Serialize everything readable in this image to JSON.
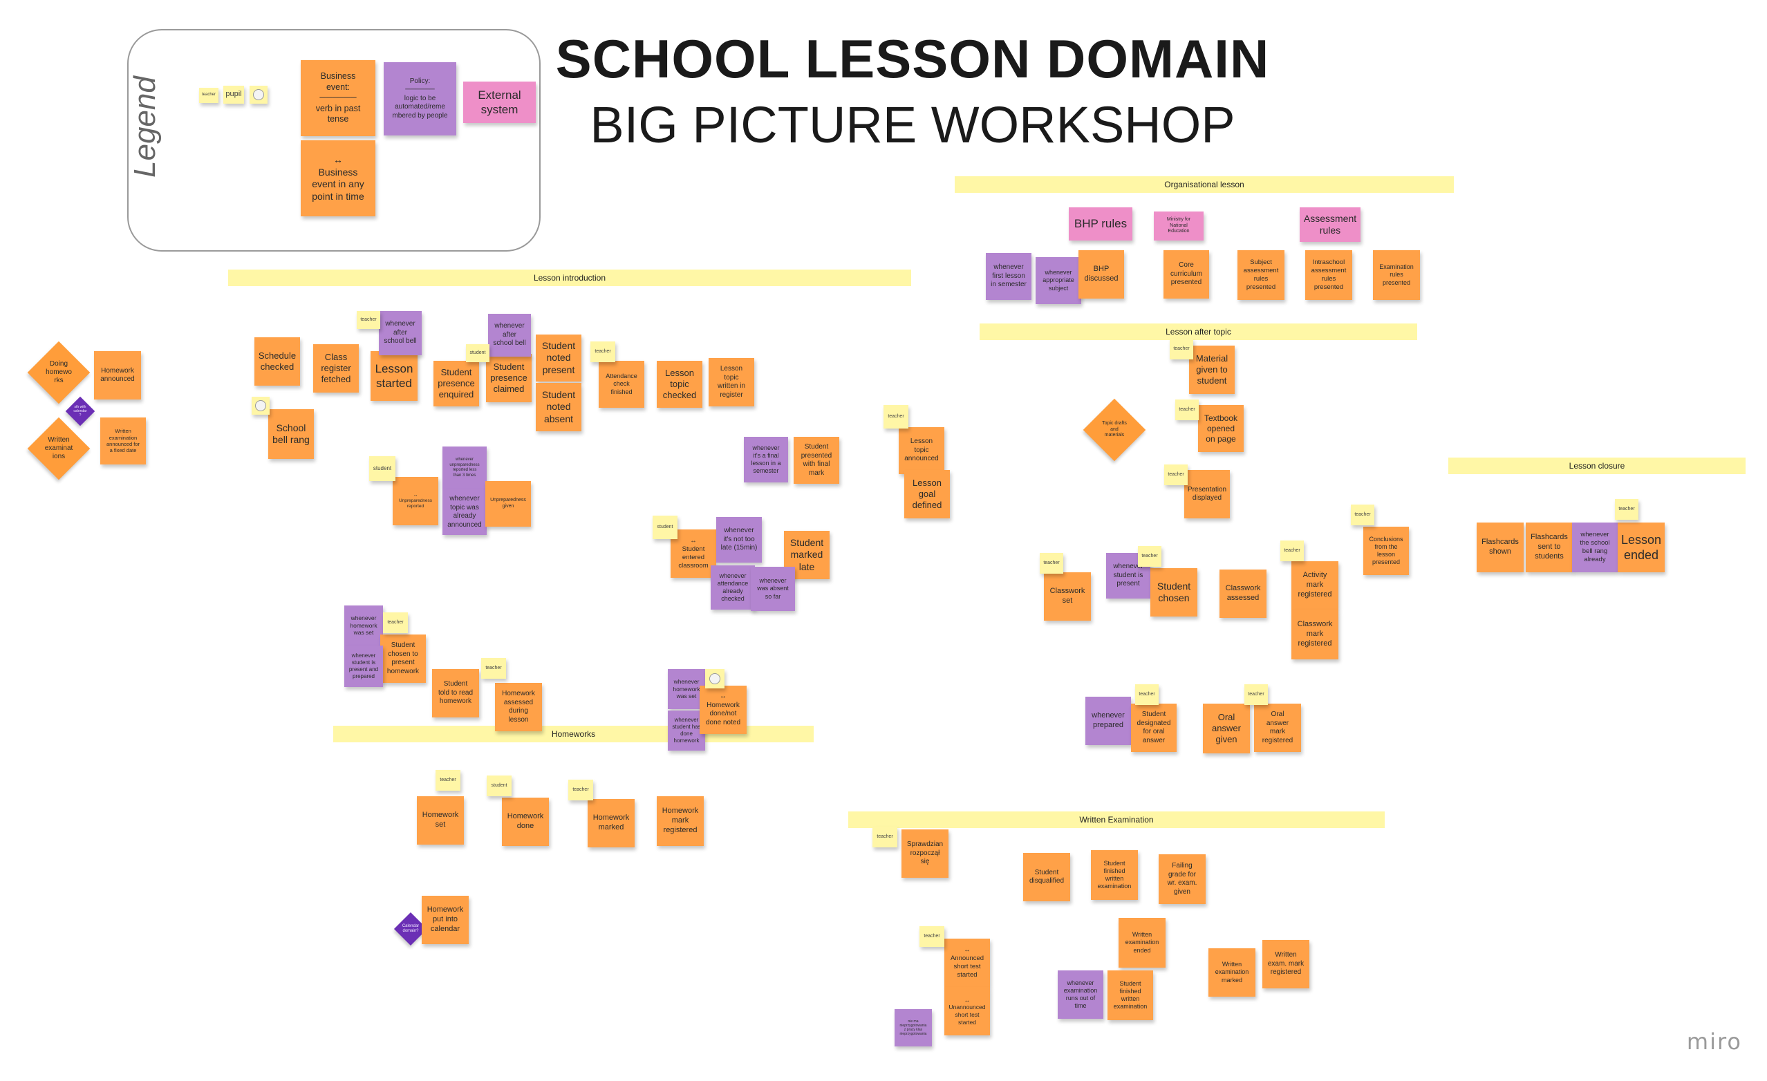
{
  "title": "SCHOOL LESSON DOMAIN",
  "subtitle": "BIG PICTURE WORKSHOP",
  "legend_label": "Legend",
  "brand": "miro",
  "colors": {
    "event": "#ffa148",
    "policy": "#b385d0",
    "external_system": "#ee8fc8",
    "actor": "#fff6a6",
    "banner": "#fff7a6",
    "calendar_diamond": "#6b2fb5"
  },
  "banners": [
    "Organisational lesson",
    "Lesson introduction",
    "Lesson after topic",
    "Lesson closure",
    "Homeworks",
    "Written Examination"
  ],
  "legend": {
    "actors": [
      "teacher",
      "pupil"
    ],
    "event": "Business\nevent:\n──────\nverb in past\ntense",
    "policy": "Policy:\n──────\nlogic to be\nautomated/reme\nmbered by people",
    "external": "External\nsystem",
    "event_any_time": "↔\nBusiness\nevent in any\npoint in time"
  },
  "diamonds": [
    "Doing\nhomewo\nrks",
    "Written\nexaminat\nions",
    "sth with\ncalendar\n?",
    "Topic drafts\nand\nmaterials",
    "Calendar\ndomain?"
  ],
  "notes": [
    "Homework\nannounced",
    "Written\nexamination\nannounced for\na fixed date",
    "Schedule\nchecked",
    "Class\nregister\nfetched",
    "Lesson\nstarted",
    "Student\npresence\nenquired",
    "Student\npresence\nclaimed",
    "Student\nnoted\npresent",
    "Student\nnoted\nabsent",
    "Attendance\ncheck\nfinished",
    "Lesson\ntopic\nchecked",
    "Lesson\ntopic\nwritten in\nregister",
    "School\nbell rang",
    "whenever\nafter\nschool bell",
    "whenever\nafter\nschool bell",
    "whenever\nunpreparedness\nreported less\nthan 3 times",
    "↔\nUnpreparedness\nreported",
    "whenever\ntopic was\nalready\nannounced",
    "Unpreparedness\ngiven",
    "whenever\nit's a final\nlesson in a\nsemester",
    "Student\npresented\nwith final\nmark",
    "Lesson\ntopic\nannounced",
    "Lesson\ngoal\ndefined",
    "↔\nStudent\nentered\nclassroom",
    "whenever\nit's not too\nlate (15min)",
    "Student\nmarked\nlate",
    "whenever\nattendance\nalready\nchecked",
    "whenever\nwas absent\nso far",
    "whenever\nhomework\nwas set",
    "Student\nchosen to\npresent\nhomework",
    "whenever\nstudent is\npresent and\nprepared",
    "Student\ntold to read\nhomework",
    "Homework\nassessed\nduring\nlesson",
    "whenever\nhomework\nwas set",
    "whenever\nstudent has\ndone\nhomework",
    "↔\nHomework\ndone/not\ndone noted",
    "Homework\nset",
    "Homework\ndone",
    "Homework\nmarked",
    "Homework\nmark\nregistered",
    "Homework\nput into\ncalendar",
    "BHP rules",
    "Ministry for\nNational\nEducation",
    "Assessment\nrules",
    "whenever\nfirst lesson\nin semester",
    "whenever\nappropriate\nsubject",
    "BHP\ndiscussed",
    "Core\ncurriculum\npresented",
    "Subject\nassessment\nrules\npresented",
    "Intraschool\nassessment\nrules\npresented",
    "Examination\nrules\npresented",
    "Material\ngiven to\nstudent",
    "Textbook\nopened\non page",
    "Presentation\ndisplayed",
    "Classwork\nset",
    "whenever\nstudent is\npresent",
    "Student\nchosen",
    "Classwork\nassessed",
    "Activity\nmark\nregistered",
    "Classwork\nmark\nregistered",
    "Conclusions\nfrom the\nlesson\npresented",
    "whenever\nprepared",
    "Student\ndesignated\nfor oral\nanswer",
    "Oral\nanswer\ngiven",
    "Oral\nanswer\nmark\nregistered",
    "Flashcards\nshown",
    "Flashcards\nsent to\nstudents",
    "whenever\nthe school\nbell rang\nalready",
    "Lesson\nended",
    "Sprawdzian\nrozpoczął\nsię",
    "Student\ndisqualified",
    "Student\nfinished\nwritten\nexamination",
    "Failing\ngrade for\nwr. exam.\ngiven",
    "Written\nexamination\nended",
    "↔\nAnnounced\nshort test\nstarted",
    "↔\nUnannounced\nshort test\nstarted",
    "whenever\nexamination\nruns out of\ntime",
    "Student\nfinished\nwritten\nexamination",
    "Written\nexamination\nmarked",
    "Written\nexam. mark\nregistered",
    "nie ma\nnieprzygotowania\nz pracy klas\nnieprzygotowania"
  ],
  "actors": [
    "teacher",
    "teacher",
    "student",
    "teacher",
    "student",
    "student",
    "teacher",
    "teacher",
    "teacher",
    "teacher",
    "teacher",
    "teacher",
    "teacher",
    "teacher",
    "teacher",
    "teacher",
    "teacher",
    "teacher",
    "teacher",
    "student",
    "teacher",
    "teacher",
    "teacher",
    "teacher"
  ]
}
